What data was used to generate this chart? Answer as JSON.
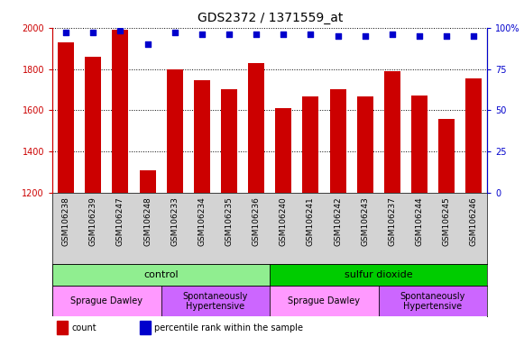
{
  "title": "GDS2372 / 1371559_at",
  "samples": [
    "GSM106238",
    "GSM106239",
    "GSM106247",
    "GSM106248",
    "GSM106233",
    "GSM106234",
    "GSM106235",
    "GSM106236",
    "GSM106240",
    "GSM106241",
    "GSM106242",
    "GSM106243",
    "GSM106237",
    "GSM106244",
    "GSM106245",
    "GSM106246"
  ],
  "counts": [
    1930,
    1860,
    1990,
    1310,
    1800,
    1745,
    1700,
    1830,
    1610,
    1665,
    1700,
    1665,
    1790,
    1670,
    1560,
    1755
  ],
  "percentile_ranks": [
    97,
    97,
    98,
    90,
    97,
    96,
    96,
    96,
    96,
    96,
    95,
    95,
    96,
    95,
    95,
    95
  ],
  "ymin": 1200,
  "ymax": 2000,
  "y_ticks": [
    1200,
    1400,
    1600,
    1800,
    2000
  ],
  "y2min": 0,
  "y2max": 100,
  "y2_ticks": [
    0,
    25,
    50,
    75,
    100
  ],
  "bar_color": "#cc0000",
  "dot_color": "#0000cc",
  "grid_color": "#000000",
  "bg_color": "#d3d3d3",
  "agent_groups": [
    {
      "label": "control",
      "start": 0,
      "end": 8,
      "color": "#90ee90"
    },
    {
      "label": "sulfur dioxide",
      "start": 8,
      "end": 16,
      "color": "#00cc00"
    }
  ],
  "strain_groups": [
    {
      "label": "Sprague Dawley",
      "start": 0,
      "end": 4,
      "color": "#ff99ff"
    },
    {
      "label": "Spontaneously\nHypertensive",
      "start": 4,
      "end": 8,
      "color": "#cc66ff"
    },
    {
      "label": "Sprague Dawley",
      "start": 8,
      "end": 12,
      "color": "#ff99ff"
    },
    {
      "label": "Spontaneously\nHypertensive",
      "start": 12,
      "end": 16,
      "color": "#cc66ff"
    }
  ],
  "bar_width": 0.6,
  "title_fontsize": 11,
  "tick_fontsize": 7,
  "label_fontsize": 8
}
